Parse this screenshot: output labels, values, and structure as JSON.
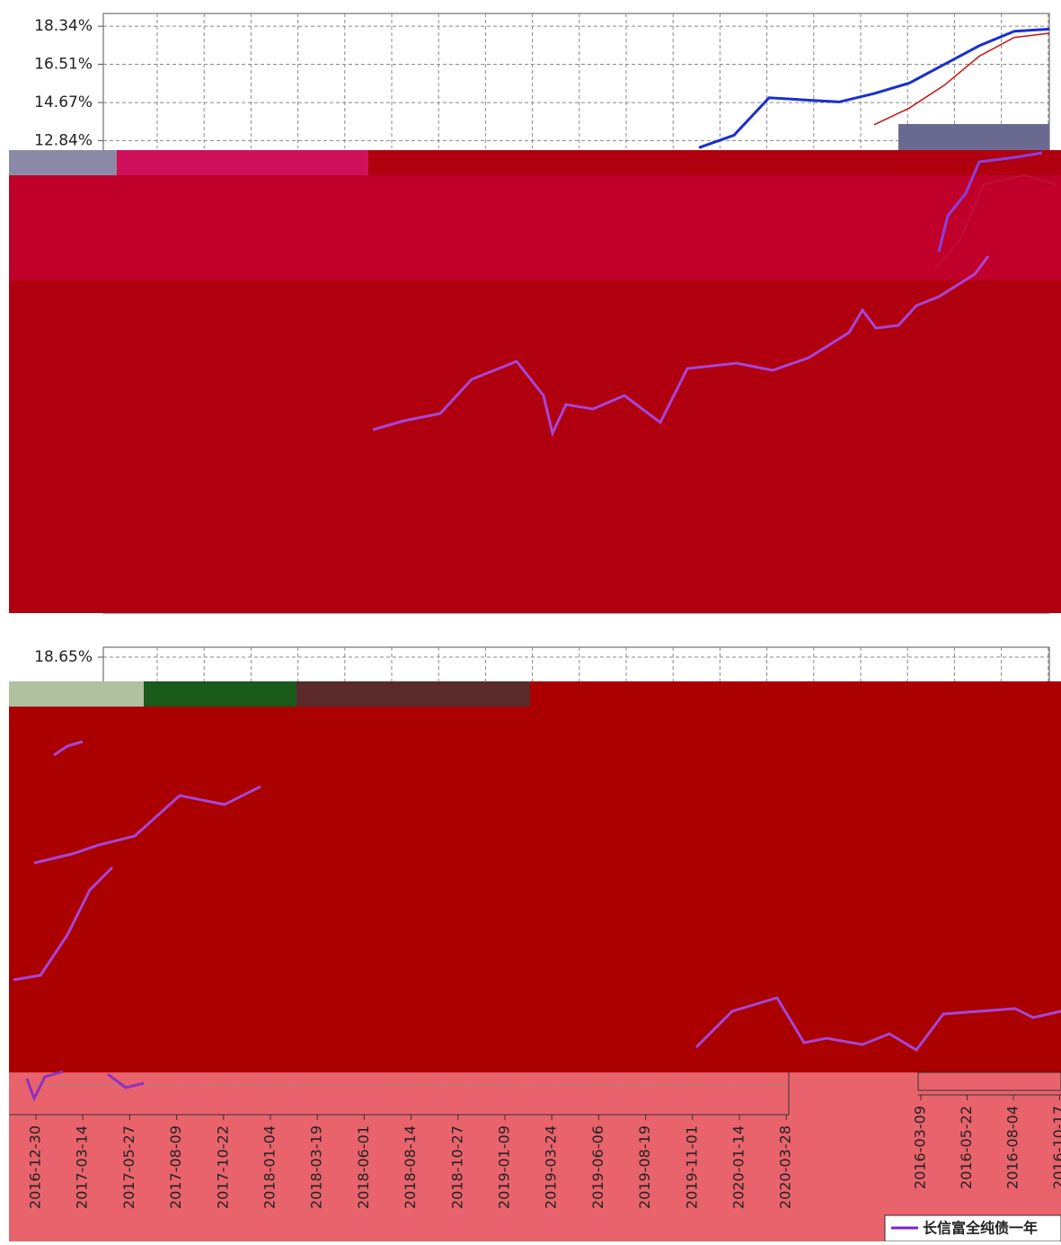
{
  "chart_data": [
    {
      "type": "line",
      "yticks": [
        {
          "value": 18.34,
          "label": "18.34%"
        },
        {
          "value": 16.51,
          "label": "16.51%"
        },
        {
          "value": 14.67,
          "label": "14.67%"
        },
        {
          "value": 12.84,
          "label": "12.84%"
        }
      ],
      "ylim": [
        12.47,
        18.95
      ],
      "grid": true,
      "series": [
        {
          "color": "#1a2fd0",
          "values": [
            null,
            null,
            null,
            null,
            null,
            null,
            null,
            null,
            null,
            null,
            null,
            null,
            null,
            null,
            null,
            null,
            null,
            12.5,
            13.1,
            14.9,
            14.8,
            14.7,
            15.1,
            15.6,
            16.5,
            17.4,
            18.1,
            18.2
          ]
        },
        {
          "color": "#cc1010",
          "values": [
            null,
            null,
            null,
            null,
            null,
            null,
            null,
            null,
            null,
            null,
            null,
            null,
            null,
            null,
            null,
            null,
            null,
            null,
            null,
            null,
            null,
            null,
            13.6,
            14.4,
            15.5,
            16.9,
            17.8,
            18.0
          ]
        }
      ]
    },
    {
      "type": "line",
      "yticks": [
        {
          "value": 18.65,
          "label": "18.65%"
        }
      ],
      "grid": true,
      "categories": [
        "2016-12-30",
        "2017-03-14",
        "2017-05-27",
        "2017-08-09",
        "2017-10-22",
        "2018-01-04",
        "2018-03-19",
        "2018-06-01",
        "2018-08-14",
        "2018-10-27",
        "2019-01-09",
        "2019-03-24",
        "2019-06-06",
        "2019-08-19",
        "2019-11-01",
        "2020-01-14",
        "2020-03-28"
      ]
    },
    {
      "type": "line",
      "categories": [
        "2016-03-09",
        "2016-05-22",
        "2016-08-04",
        "2016-10-17"
      ],
      "series": [
        {
          "name": "长信富全纯债一年",
          "color": "#7a22c8"
        }
      ]
    }
  ]
}
